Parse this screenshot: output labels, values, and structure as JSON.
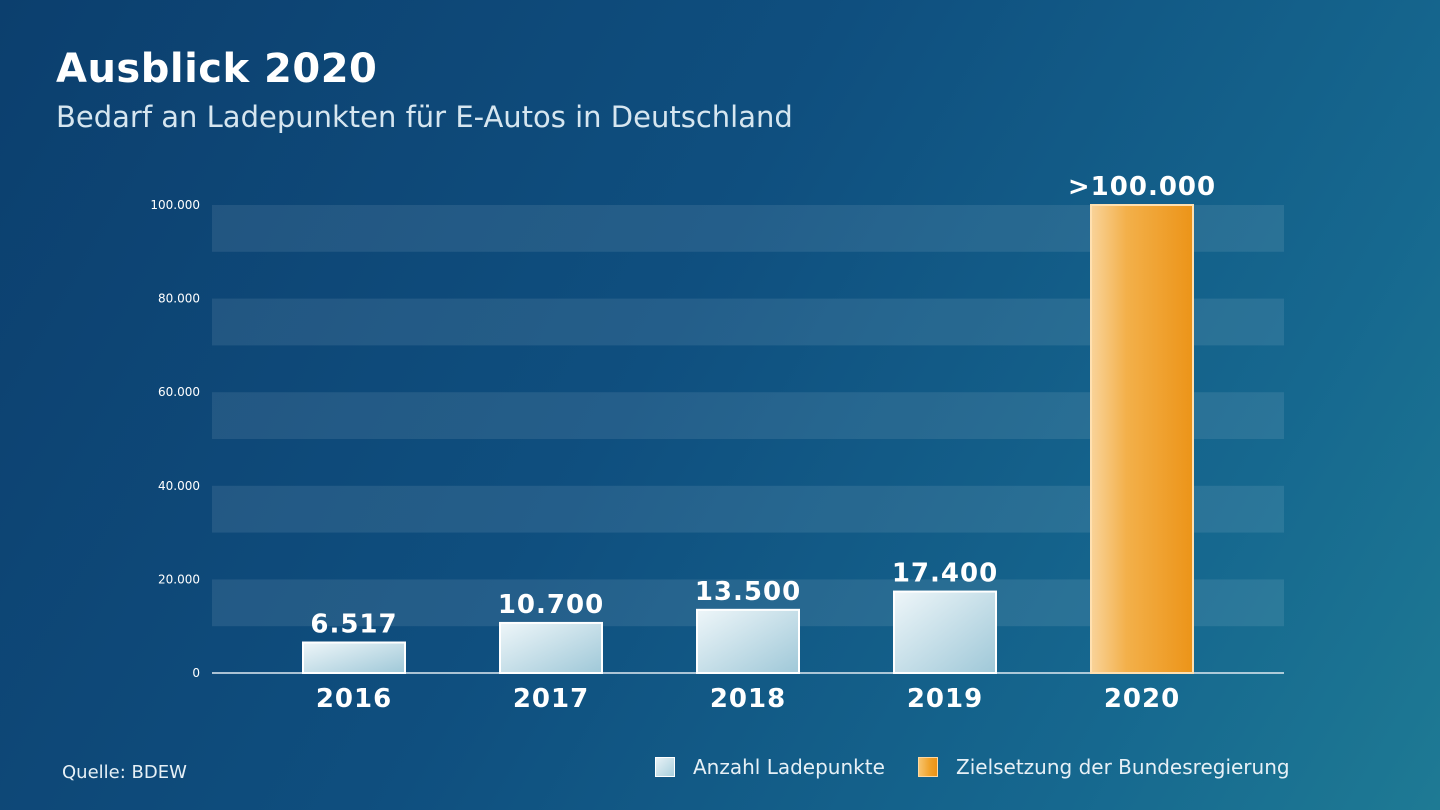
{
  "header": {
    "title": "Ausblick 2020",
    "subtitle": "Bedarf an Ladepunkten für E-Autos in Deutschland"
  },
  "footer": {
    "source": "Quelle: BDEW"
  },
  "legend": {
    "actual_label": "Anzahl Ladepunkte",
    "target_label": "Zielsetzung der Bundesregierung"
  },
  "colors": {
    "background": "#0f4f7f",
    "bar_actual": "#c8e1ea",
    "bar_target": "#f0a22a",
    "band": "#ffffff"
  },
  "chart_data": {
    "type": "bar",
    "title": "Ausblick 2020",
    "subtitle": "Bedarf an Ladepunkten für E-Autos in Deutschland",
    "xlabel": "",
    "ylabel": "",
    "ylim": [
      0,
      100000
    ],
    "yticks": [
      0,
      20000,
      40000,
      60000,
      80000,
      100000
    ],
    "ytick_labels": [
      "0",
      "20.000",
      "40.000",
      "60.000",
      "80.000",
      "100.000"
    ],
    "categories": [
      "2016",
      "2017",
      "2018",
      "2019",
      "2020"
    ],
    "values": [
      6517,
      10700,
      13500,
      17400,
      100000
    ],
    "value_labels": [
      "6.517",
      "10.700",
      "13.500",
      "17.400",
      ">100.000"
    ],
    "series_type": [
      "actual",
      "actual",
      "actual",
      "actual",
      "target"
    ],
    "grid": "horizontal bands",
    "legend_position": "bottom-right"
  }
}
